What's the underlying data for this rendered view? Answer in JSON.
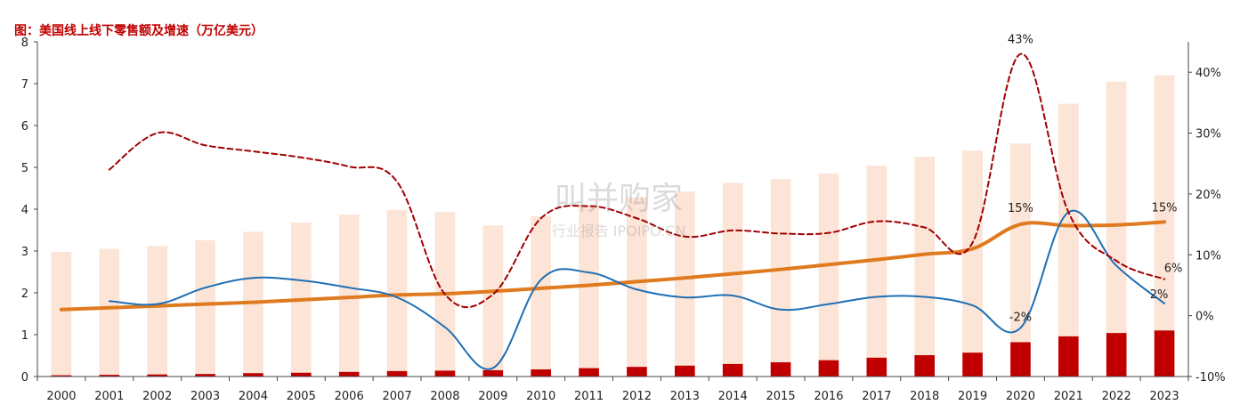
{
  "title": "图：美国线上线下零售额及增速（万亿美元）",
  "watermark": {
    "main": "叫并购家",
    "sub": "行业报告 IPOIPO.CN"
  },
  "chart_data": {
    "type": "bar",
    "categories": [
      "2000",
      "2001",
      "2002",
      "2003",
      "2004",
      "2005",
      "2006",
      "2007",
      "2008",
      "2009",
      "2010",
      "2011",
      "2012",
      "2013",
      "2014",
      "2015",
      "2016",
      "2017",
      "2018",
      "2019",
      "2020",
      "2021",
      "2022",
      "2023"
    ],
    "ylim": [
      0,
      8
    ],
    "y_ticks": [
      "0",
      "1",
      "2",
      "3",
      "4",
      "5",
      "6",
      "7",
      "8"
    ],
    "y2lim": [
      -10,
      45
    ],
    "y2_ticks": [
      "-10%",
      "0%",
      "10%",
      "20%",
      "30%",
      "40%"
    ],
    "y2_tick_values": [
      -10,
      0,
      10,
      20,
      30,
      40
    ],
    "grid": false,
    "colors": {
      "total_bar": "#fce4d6",
      "online_bar": "#c00000",
      "online_ratio_line": "#e07a1f",
      "total_growth_line": "#1f6fb4",
      "online_growth_line": "#a00000"
    },
    "series": [
      {
        "key": "total",
        "type": "bar",
        "values": [
          2.98,
          3.05,
          3.12,
          3.26,
          3.46,
          3.68,
          3.87,
          3.98,
          3.93,
          3.61,
          3.83,
          4.1,
          4.28,
          4.42,
          4.63,
          4.72,
          4.85,
          5.04,
          5.25,
          5.4,
          5.57,
          6.52,
          7.05,
          7.2
        ]
      },
      {
        "key": "online",
        "type": "bar",
        "values": [
          0.03,
          0.04,
          0.05,
          0.06,
          0.08,
          0.09,
          0.11,
          0.13,
          0.14,
          0.15,
          0.17,
          0.2,
          0.23,
          0.26,
          0.3,
          0.34,
          0.39,
          0.45,
          0.51,
          0.57,
          0.82,
          0.96,
          1.04,
          1.1
        ]
      },
      {
        "key": "online_ratio",
        "type": "line",
        "axis": "y2",
        "values": [
          1.0,
          1.3,
          1.6,
          1.9,
          2.2,
          2.6,
          3.0,
          3.4,
          3.6,
          4.0,
          4.5,
          5.0,
          5.6,
          6.2,
          6.9,
          7.6,
          8.4,
          9.2,
          10.1,
          11.0,
          15.0,
          14.8,
          14.9,
          15.4
        ]
      },
      {
        "key": "total_growth",
        "type": "line",
        "axis": "y2",
        "values": [
          null,
          2.4,
          1.9,
          4.6,
          6.2,
          5.8,
          4.6,
          3.0,
          -1.9,
          -8.6,
          5.9,
          7.1,
          4.3,
          3.0,
          3.3,
          1.0,
          1.9,
          3.1,
          3.1,
          1.7,
          -2.0,
          17.0,
          8.2,
          2.0
        ]
      },
      {
        "key": "online_growth",
        "type": "line",
        "axis": "y2",
        "dashed": true,
        "values": [
          null,
          24.0,
          30.0,
          28.0,
          27.0,
          26.0,
          24.5,
          22.0,
          3.5,
          3.5,
          16.0,
          18.0,
          16.0,
          13.0,
          14.0,
          13.5,
          13.6,
          15.5,
          14.5,
          12.0,
          43.0,
          17.0,
          9.0,
          6.0
        ]
      }
    ],
    "annotations": [
      {
        "text": "43%",
        "category": "2020",
        "value": 43
      },
      {
        "text": "15%",
        "category": "2020",
        "value": 15
      },
      {
        "text": "-2%",
        "category": "2020",
        "value": -2
      },
      {
        "text": "15%",
        "category": "2023",
        "value": 15.4
      },
      {
        "text": "6%",
        "category": "2023",
        "value": 6
      },
      {
        "text": "2%",
        "category": "2023",
        "value": 2
      }
    ]
  }
}
